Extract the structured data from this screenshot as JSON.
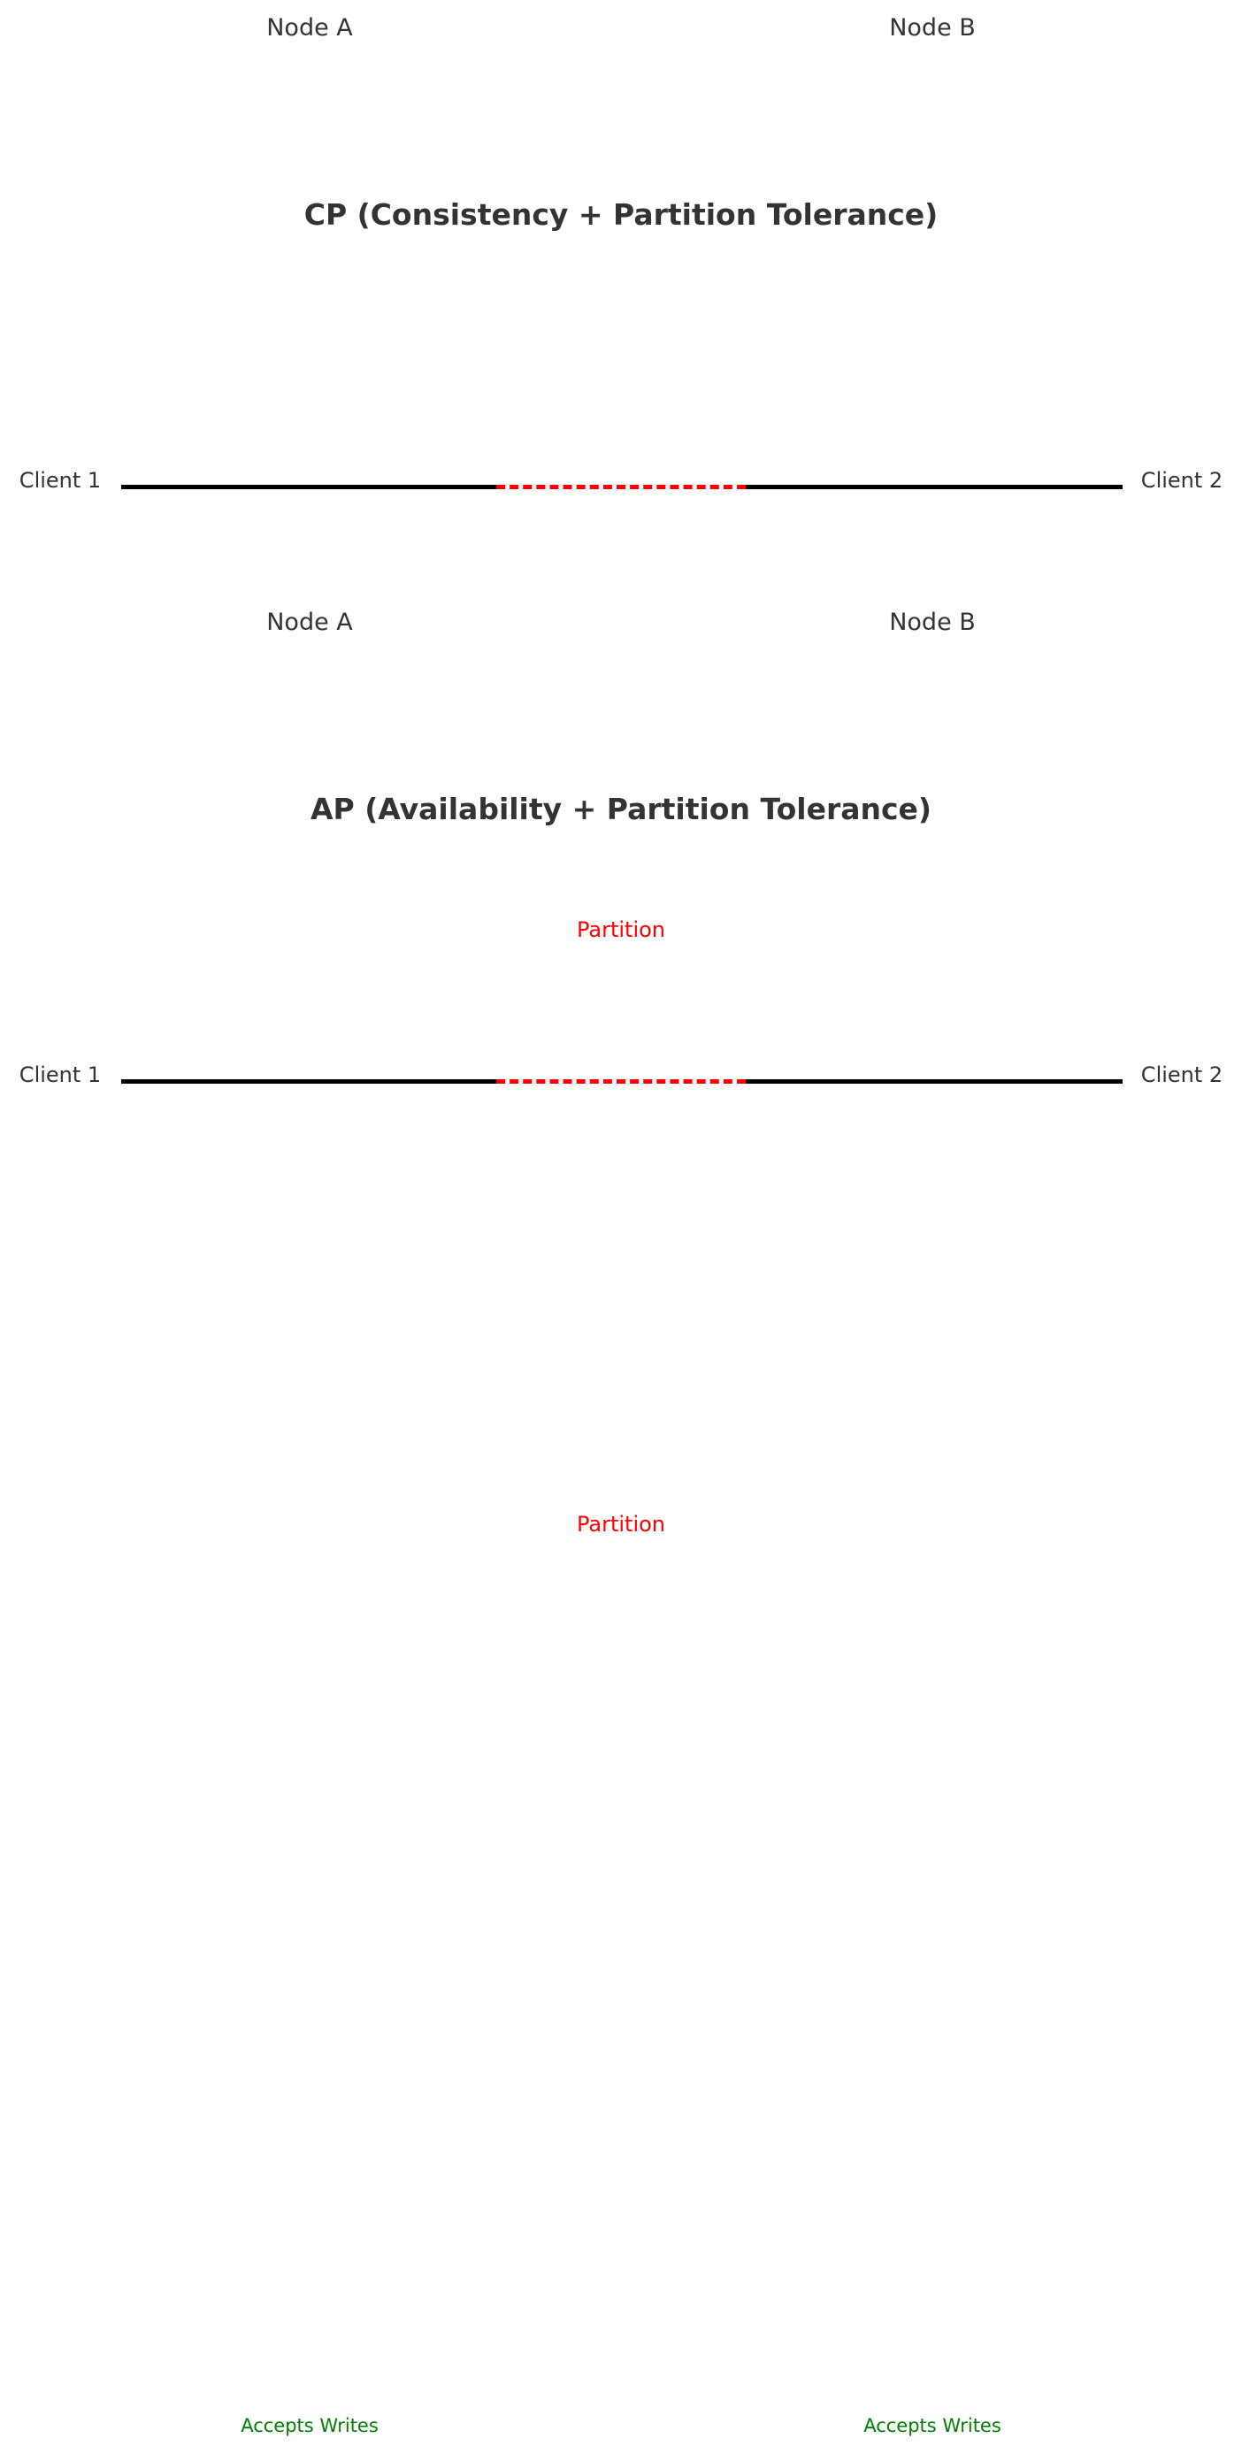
{
  "colors": {
    "text": "#333333",
    "link": "#000000",
    "partition": "#ff0000",
    "accepts_writes": "#008000"
  },
  "cp": {
    "node_a": "Node A",
    "node_b": "Node B",
    "title": "CP (Consistency + Partition Tolerance)",
    "client_1": "Client 1",
    "client_2": "Client 2",
    "partition": "Partition"
  },
  "ap": {
    "node_a": "Node A",
    "node_b": "Node B",
    "title": "AP (Availability + Partition Tolerance)",
    "client_1": "Client 1",
    "client_2": "Client 2",
    "partition": "Partition",
    "node_a_status": "Accepts Writes",
    "node_b_status": "Accepts Writes"
  }
}
